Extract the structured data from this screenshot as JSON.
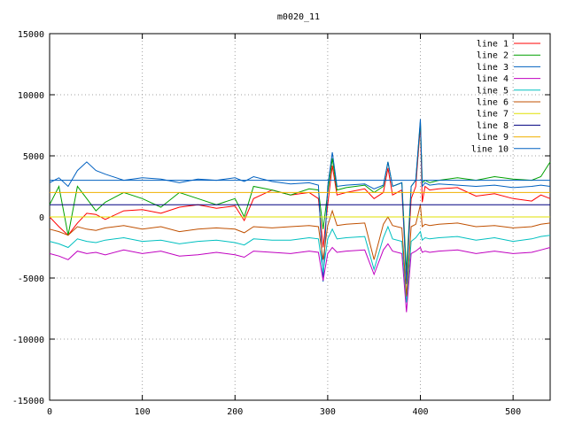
{
  "chart_data": {
    "type": "line",
    "title": "m0020_11",
    "xlabel": "",
    "ylabel": "",
    "xlim": [
      0,
      540
    ],
    "ylim": [
      -15000,
      15000
    ],
    "xticks": [
      0,
      100,
      200,
      300,
      400,
      500
    ],
    "yticks": [
      -15000,
      -10000,
      -5000,
      0,
      5000,
      10000,
      15000
    ],
    "grid": true,
    "legend_position": "top-right",
    "series": [
      {
        "name": "line 1",
        "color": "#ff0000",
        "x": [
          0,
          10,
          20,
          30,
          40,
          50,
          60,
          80,
          100,
          120,
          140,
          160,
          180,
          200,
          210,
          220,
          240,
          260,
          280,
          290,
          295,
          300,
          305,
          310,
          320,
          340,
          350,
          360,
          365,
          370,
          380,
          385,
          390,
          395,
          400,
          402,
          405,
          410,
          420,
          440,
          460,
          480,
          500,
          520,
          530,
          540
        ],
        "y": [
          0,
          -800,
          -1500,
          -500,
          300,
          200,
          -200,
          500,
          600,
          300,
          800,
          1000,
          700,
          900,
          -300,
          1500,
          2200,
          1800,
          2000,
          1500,
          -2500,
          1000,
          4200,
          1800,
          2000,
          2300,
          1500,
          2000,
          4000,
          1800,
          2200,
          -5200,
          1500,
          2500,
          7500,
          1200,
          2500,
          2200,
          2300,
          2400,
          1700,
          1900,
          1500,
          1300,
          1800,
          1500
        ]
      },
      {
        "name": "line 2",
        "color": "#00a000",
        "x": [
          0,
          10,
          20,
          30,
          40,
          50,
          60,
          80,
          100,
          120,
          140,
          160,
          180,
          200,
          210,
          220,
          240,
          260,
          280,
          290,
          295,
          300,
          305,
          310,
          320,
          340,
          350,
          360,
          365,
          370,
          380,
          385,
          390,
          395,
          400,
          402,
          405,
          410,
          420,
          440,
          460,
          480,
          500,
          520,
          530,
          540
        ],
        "y": [
          1000,
          2500,
          -1500,
          2500,
          1500,
          500,
          1200,
          2000,
          1500,
          800,
          2000,
          1500,
          1000,
          1500,
          0,
          2500,
          2200,
          1800,
          2300,
          2200,
          -1000,
          2000,
          4800,
          2200,
          2400,
          2600,
          2000,
          2500,
          4500,
          2500,
          2800,
          -4500,
          2500,
          3000,
          7800,
          2800,
          3000,
          2800,
          3000,
          3200,
          3000,
          3300,
          3100,
          3000,
          3300,
          4500
        ]
      },
      {
        "name": "line 3",
        "color": "#0060c0",
        "x": [
          0,
          10,
          20,
          30,
          40,
          50,
          60,
          80,
          100,
          120,
          140,
          160,
          180,
          200,
          210,
          220,
          240,
          260,
          280,
          290,
          295,
          300,
          305,
          310,
          320,
          340,
          350,
          360,
          365,
          370,
          380,
          385,
          390,
          395,
          400,
          402,
          405,
          410,
          420,
          440,
          460,
          480,
          500,
          520,
          530,
          540
        ],
        "y": [
          2800,
          3200,
          2500,
          3800,
          4500,
          3800,
          3500,
          3000,
          3200,
          3100,
          2800,
          3100,
          3000,
          3200,
          2900,
          3300,
          2900,
          2700,
          2800,
          2600,
          -5300,
          2500,
          5300,
          2500,
          2600,
          2700,
          2300,
          2600,
          4500,
          2500,
          2800,
          -5500,
          2500,
          3000,
          8000,
          2500,
          2800,
          2600,
          2700,
          2600,
          2500,
          2600,
          2400,
          2500,
          2600,
          2500
        ]
      },
      {
        "name": "line 4",
        "color": "#c000c0",
        "x": [
          0,
          10,
          20,
          30,
          40,
          50,
          60,
          80,
          100,
          120,
          140,
          160,
          180,
          200,
          210,
          220,
          240,
          260,
          280,
          290,
          295,
          300,
          305,
          310,
          320,
          340,
          350,
          360,
          365,
          370,
          380,
          385,
          390,
          395,
          400,
          402,
          405,
          410,
          420,
          440,
          460,
          480,
          500,
          520,
          530,
          540
        ],
        "y": [
          -3000,
          -3200,
          -3500,
          -2800,
          -3000,
          -2900,
          -3100,
          -2700,
          -3000,
          -2800,
          -3200,
          -3100,
          -2900,
          -3100,
          -3300,
          -2800,
          -2900,
          -3000,
          -2800,
          -2900,
          -5200,
          -3000,
          -2500,
          -2900,
          -2800,
          -2700,
          -4700,
          -2700,
          -2200,
          -2800,
          -3000,
          -7800,
          -3000,
          -2800,
          -2500,
          -2900,
          -2800,
          -2900,
          -2800,
          -2700,
          -3000,
          -2800,
          -3000,
          -2900,
          -2700,
          -2500
        ]
      },
      {
        "name": "line 5",
        "color": "#00c0c0",
        "x": [
          0,
          10,
          20,
          30,
          40,
          50,
          60,
          80,
          100,
          120,
          140,
          160,
          180,
          200,
          210,
          220,
          240,
          260,
          280,
          290,
          295,
          300,
          305,
          310,
          320,
          340,
          350,
          360,
          365,
          370,
          380,
          385,
          390,
          395,
          400,
          402,
          405,
          410,
          420,
          440,
          460,
          480,
          500,
          520,
          530,
          540
        ],
        "y": [
          -2000,
          -2200,
          -2500,
          -1800,
          -2000,
          -2100,
          -1900,
          -1700,
          -2000,
          -1900,
          -2200,
          -2000,
          -1900,
          -2100,
          -2300,
          -1800,
          -1900,
          -1900,
          -1700,
          -1800,
          -4500,
          -1800,
          -1000,
          -1800,
          -1700,
          -1600,
          -4300,
          -1700,
          -800,
          -1800,
          -2000,
          -7000,
          -2000,
          -1700,
          -1200,
          -1900,
          -1700,
          -1800,
          -1700,
          -1600,
          -1900,
          -1700,
          -2000,
          -1800,
          -1600,
          -1500
        ]
      },
      {
        "name": "line 6",
        "color": "#c05000",
        "x": [
          0,
          10,
          20,
          30,
          40,
          50,
          60,
          80,
          100,
          120,
          140,
          160,
          180,
          200,
          210,
          220,
          240,
          260,
          280,
          290,
          295,
          300,
          305,
          310,
          320,
          340,
          350,
          360,
          365,
          370,
          380,
          385,
          390,
          395,
          400,
          402,
          405,
          410,
          420,
          440,
          460,
          480,
          500,
          520,
          530,
          540
        ],
        "y": [
          -1000,
          -1200,
          -1500,
          -800,
          -1000,
          -1100,
          -900,
          -700,
          -1000,
          -800,
          -1200,
          -1000,
          -900,
          -1000,
          -1300,
          -800,
          -900,
          -800,
          -700,
          -800,
          -3500,
          -700,
          500,
          -700,
          -600,
          -500,
          -3500,
          -600,
          0,
          -700,
          -900,
          -6500,
          -800,
          -600,
          1000,
          -800,
          -600,
          -700,
          -600,
          -500,
          -800,
          -700,
          -900,
          -800,
          -600,
          -500
        ]
      },
      {
        "name": "line 7",
        "color": "#e0e000",
        "x": [
          0,
          540
        ],
        "y": [
          0,
          0
        ]
      },
      {
        "name": "line 8",
        "color": "#000080",
        "x": [
          0,
          540
        ],
        "y": [
          1000,
          1000
        ]
      },
      {
        "name": "line 9",
        "color": "#f0b000",
        "x": [
          0,
          540
        ],
        "y": [
          2000,
          2000
        ]
      },
      {
        "name": "line 10",
        "color": "#0060c0",
        "x": [
          0,
          540
        ],
        "y": [
          3000,
          3000
        ]
      }
    ]
  }
}
